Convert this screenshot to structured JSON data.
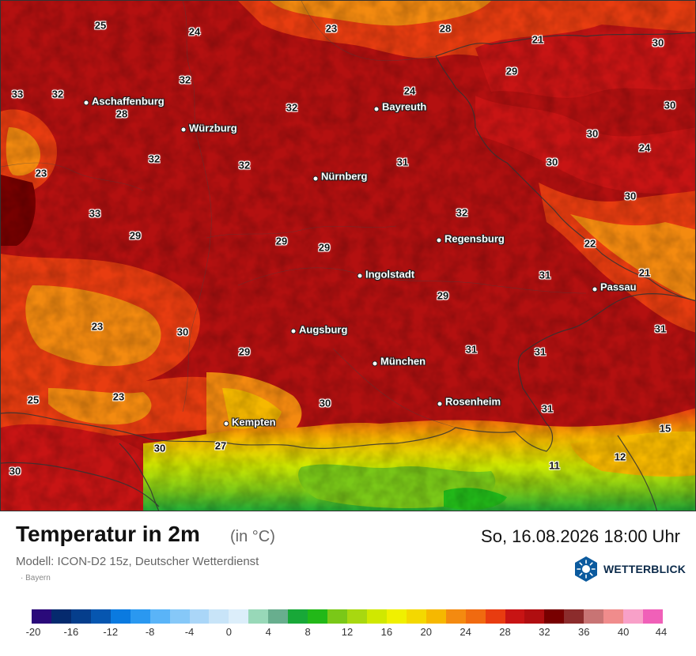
{
  "map": {
    "title": "Temperatur in 2m",
    "unit": "(in °C)",
    "datetime": "So, 16.08.2026 18:00 Uhr",
    "model": "Modell: ICON-D2 15z, Deutscher Wetterdienst",
    "region": "Bayern",
    "brand": "WETTERBLICK",
    "cities": [
      {
        "name": "Aschaffenburg"
      },
      {
        "name": "Würzburg"
      },
      {
        "name": "Bayreuth"
      },
      {
        "name": "Nürnberg"
      },
      {
        "name": "Regensburg"
      },
      {
        "name": "Ingolstadt"
      },
      {
        "name": "Passau"
      },
      {
        "name": "Augsburg"
      },
      {
        "name": "München"
      },
      {
        "name": "Rosenheim"
      },
      {
        "name": "Kempten"
      }
    ],
    "temperatures": [
      "25",
      "24",
      "23",
      "28",
      "21",
      "30",
      "33",
      "32",
      "32",
      "32",
      "24",
      "29",
      "30",
      "28",
      "31",
      "32",
      "30",
      "23",
      "32",
      "30",
      "24",
      "33",
      "29",
      "29",
      "29",
      "32",
      "30",
      "22",
      "31",
      "21",
      "29",
      "23",
      "30",
      "29",
      "31",
      "31",
      "31",
      "25",
      "23",
      "30",
      "31",
      "15",
      "30",
      "27",
      "11",
      "12",
      "30"
    ]
  },
  "legend": {
    "colors": [
      "#2a0a7a",
      "#052a6e",
      "#053e8c",
      "#0656b0",
      "#0a7ae0",
      "#2a98f0",
      "#5ab4f8",
      "#86c8f8",
      "#aad6f8",
      "#c8e4f8",
      "#dceefa",
      "#98d8b8",
      "#68ae8e",
      "#18a838",
      "#22b818",
      "#7ac818",
      "#a8d810",
      "#d0e800",
      "#f0f000",
      "#f4d800",
      "#f6b800",
      "#f48a10",
      "#f06a10",
      "#e83c10",
      "#c81414",
      "#b00e10",
      "#780000",
      "#8c2c2c",
      "#c87474",
      "#f08c8c",
      "#f8a0c8",
      "#f060b8"
    ],
    "ticks": [
      "-20",
      "-16",
      "-12",
      "-8",
      "-4",
      "0",
      "4",
      "8",
      "12",
      "16",
      "20",
      "24",
      "28",
      "32",
      "36",
      "40",
      "44"
    ]
  }
}
